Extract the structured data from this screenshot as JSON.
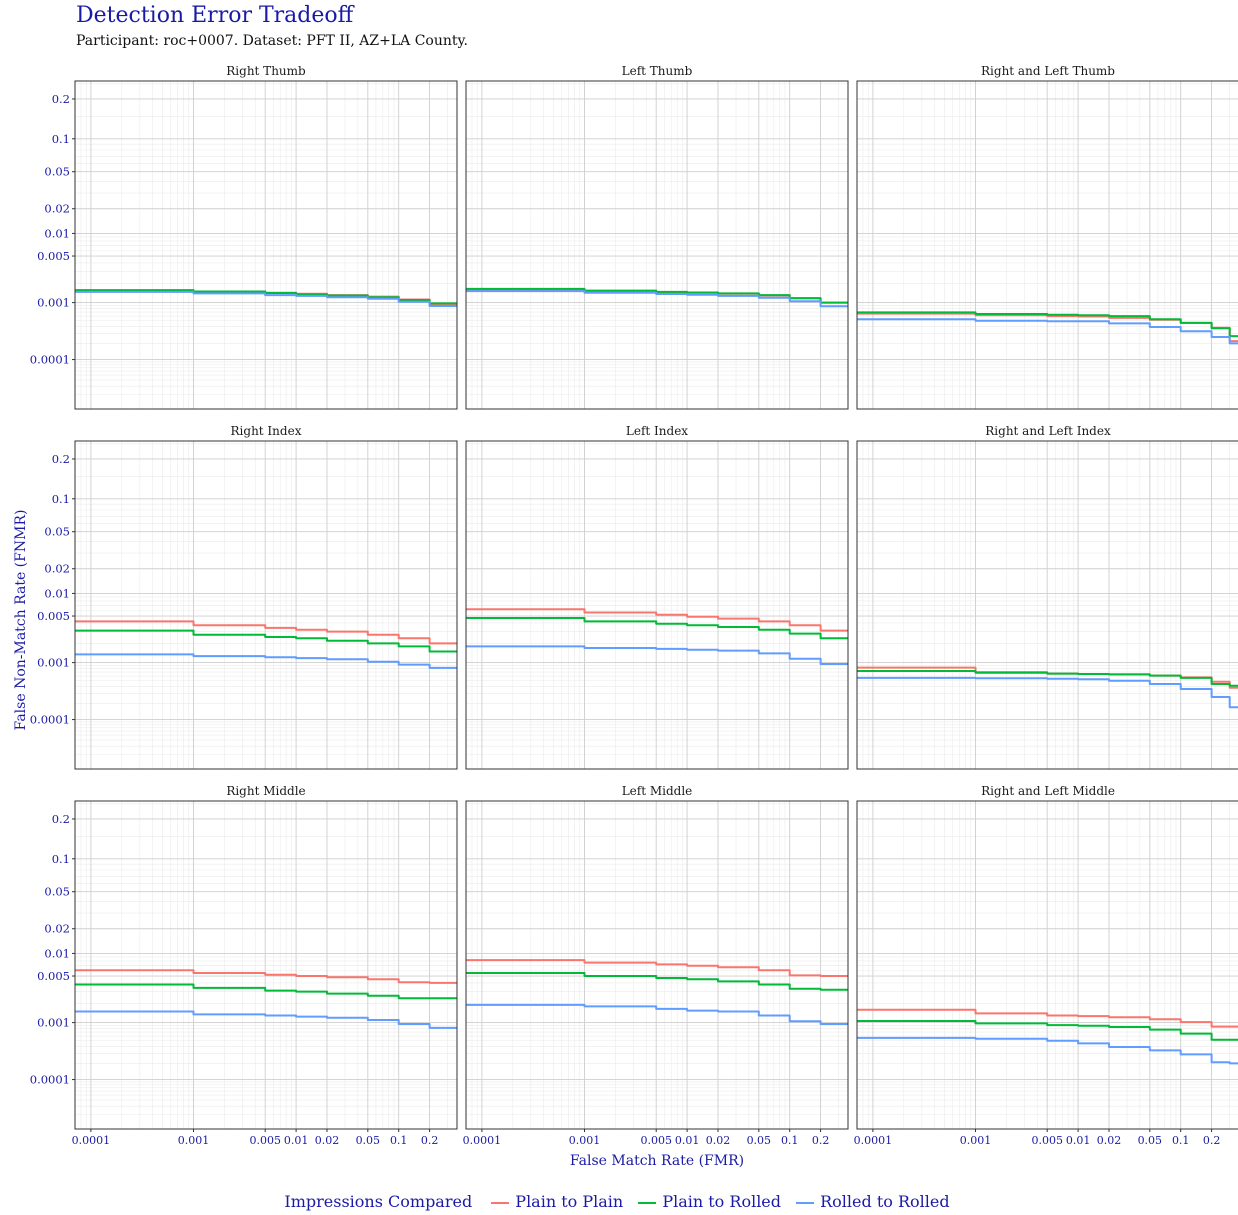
{
  "title": "Detection Error Tradeoff",
  "subtitle": "Participant: roc+0007. Dataset: PFT II, AZ+LA County.",
  "chart_data": {
    "type": "line",
    "xlabel": "False Match Rate (FMR)",
    "ylabel": "False Non-Match Rate (FNMR)",
    "x_scale": "log",
    "y_scale": "probit",
    "xlim": [
      7e-05,
      0.37
    ],
    "ylim": [
      1e-05,
      0.26
    ],
    "x_ticks": [
      {
        "v": 0.0001,
        "label": "0.0001"
      },
      {
        "v": 0.001,
        "label": "0.001"
      },
      {
        "v": 0.005,
        "label": "0.005"
      },
      {
        "v": 0.01,
        "label": "0.01"
      },
      {
        "v": 0.02,
        "label": "0.02"
      },
      {
        "v": 0.05,
        "label": "0.05"
      },
      {
        "v": 0.1,
        "label": "0.1"
      },
      {
        "v": 0.2,
        "label": "0.2"
      }
    ],
    "y_ticks": [
      {
        "v": 0.2,
        "label": "0.2"
      },
      {
        "v": 0.1,
        "label": "0.1"
      },
      {
        "v": 0.05,
        "label": "0.05"
      },
      {
        "v": 0.02,
        "label": "0.02"
      },
      {
        "v": 0.01,
        "label": "0.01"
      },
      {
        "v": 0.005,
        "label": "0.005"
      },
      {
        "v": 0.001,
        "label": "0.001"
      },
      {
        "v": 0.0001,
        "label": "0.0001"
      }
    ],
    "grid": true,
    "legend": {
      "title": "Impressions Compared",
      "position": "bottom",
      "items": [
        {
          "name": "Plain to Plain",
          "color": "#F8766D"
        },
        {
          "name": "Plain to Rolled",
          "color": "#00BA38"
        },
        {
          "name": "Rolled to Rolled",
          "color": "#619CFF"
        }
      ]
    },
    "panels": [
      {
        "title": "Right Thumb",
        "series": [
          {
            "name": "Plain to Plain",
            "x": [
              7e-05,
              0.001,
              0.005,
              0.01,
              0.02,
              0.05,
              0.1,
              0.2,
              0.37
            ],
            "y": [
              0.00155,
              0.0015,
              0.00143,
              0.00138,
              0.00132,
              0.00125,
              0.00112,
              0.00095,
              0.00095
            ]
          },
          {
            "name": "Plain to Rolled",
            "x": [
              7e-05,
              0.001,
              0.005,
              0.01,
              0.02,
              0.05,
              0.1,
              0.2,
              0.37
            ],
            "y": [
              0.00158,
              0.0015,
              0.00142,
              0.00135,
              0.0013,
              0.00122,
              0.0011,
              0.00097,
              0.00097
            ]
          },
          {
            "name": "Rolled to Rolled",
            "x": [
              7e-05,
              0.001,
              0.005,
              0.01,
              0.02,
              0.05,
              0.1,
              0.2,
              0.37
            ],
            "y": [
              0.00148,
              0.0014,
              0.00132,
              0.00128,
              0.00122,
              0.00115,
              0.00103,
              0.00088,
              0.00088
            ]
          }
        ]
      },
      {
        "title": "Left Thumb",
        "series": [
          {
            "name": "Plain to Plain",
            "x": [
              7e-05,
              0.001,
              0.005,
              0.01,
              0.02,
              0.05,
              0.1,
              0.2,
              0.37
            ],
            "y": [
              0.0016,
              0.00152,
              0.00147,
              0.00143,
              0.00138,
              0.0013,
              0.00117,
              0.001,
              0.001
            ]
          },
          {
            "name": "Plain to Rolled",
            "x": [
              7e-05,
              0.001,
              0.005,
              0.01,
              0.02,
              0.05,
              0.1,
              0.2,
              0.37
            ],
            "y": [
              0.00165,
              0.00155,
              0.00148,
              0.00145,
              0.0014,
              0.00132,
              0.00118,
              0.001,
              0.001
            ]
          },
          {
            "name": "Rolled to Rolled",
            "x": [
              7e-05,
              0.001,
              0.005,
              0.01,
              0.02,
              0.05,
              0.1,
              0.2,
              0.37
            ],
            "y": [
              0.00152,
              0.00143,
              0.00137,
              0.00133,
              0.00128,
              0.0012,
              0.00105,
              0.00087,
              0.00087
            ]
          }
        ]
      },
      {
        "title": "Right and Left Thumb",
        "series": [
          {
            "name": "Plain to Plain",
            "x": [
              7e-05,
              0.001,
              0.005,
              0.01,
              0.02,
              0.05,
              0.1,
              0.2,
              0.3,
              0.37
            ],
            "y": [
              0.00066,
              0.00062,
              0.0006,
              0.00059,
              0.00056,
              0.00052,
              0.00046,
              0.00038,
              0.00022,
              0.00022
            ]
          },
          {
            "name": "Plain to Rolled",
            "x": [
              7e-05,
              0.001,
              0.005,
              0.01,
              0.02,
              0.05,
              0.1,
              0.2,
              0.3,
              0.37
            ],
            "y": [
              0.00069,
              0.00065,
              0.00063,
              0.00062,
              0.0006,
              0.00053,
              0.00046,
              0.00037,
              0.00027,
              0.00027
            ]
          },
          {
            "name": "Rolled to Rolled",
            "x": [
              7e-05,
              0.001,
              0.005,
              0.01,
              0.02,
              0.05,
              0.1,
              0.2,
              0.3,
              0.37
            ],
            "y": [
              0.00053,
              0.0005,
              0.00049,
              0.00049,
              0.00045,
              0.00039,
              0.00033,
              0.00026,
              0.0002,
              0.0002
            ]
          }
        ]
      },
      {
        "title": "Right Index",
        "series": [
          {
            "name": "Plain to Plain",
            "x": [
              7e-05,
              0.001,
              0.005,
              0.01,
              0.02,
              0.05,
              0.1,
              0.2,
              0.37
            ],
            "y": [
              0.0042,
              0.0037,
              0.0034,
              0.0032,
              0.003,
              0.0027,
              0.0024,
              0.002,
              0.002
            ]
          },
          {
            "name": "Plain to Rolled",
            "x": [
              7e-05,
              0.001,
              0.005,
              0.01,
              0.02,
              0.05,
              0.1,
              0.2,
              0.37
            ],
            "y": [
              0.0031,
              0.0027,
              0.0025,
              0.0024,
              0.0022,
              0.002,
              0.0018,
              0.0015,
              0.0015
            ]
          },
          {
            "name": "Rolled to Rolled",
            "x": [
              7e-05,
              0.001,
              0.005,
              0.01,
              0.02,
              0.05,
              0.1,
              0.2,
              0.37
            ],
            "y": [
              0.00135,
              0.00127,
              0.00122,
              0.00118,
              0.00113,
              0.00103,
              0.00093,
              0.00082,
              0.00082
            ]
          }
        ]
      },
      {
        "title": "Left Index",
        "series": [
          {
            "name": "Plain to Plain",
            "x": [
              7e-05,
              0.001,
              0.005,
              0.01,
              0.02,
              0.05,
              0.1,
              0.2,
              0.37
            ],
            "y": [
              0.0062,
              0.0056,
              0.0052,
              0.0049,
              0.0046,
              0.0042,
              0.0037,
              0.0031,
              0.0031
            ]
          },
          {
            "name": "Plain to Rolled",
            "x": [
              7e-05,
              0.001,
              0.005,
              0.01,
              0.02,
              0.05,
              0.1,
              0.2,
              0.37
            ],
            "y": [
              0.0047,
              0.0042,
              0.0039,
              0.0037,
              0.0035,
              0.0032,
              0.0028,
              0.0024,
              0.0024
            ]
          },
          {
            "name": "Rolled to Rolled",
            "x": [
              7e-05,
              0.001,
              0.005,
              0.01,
              0.02,
              0.05,
              0.1,
              0.2,
              0.37
            ],
            "y": [
              0.0018,
              0.0017,
              0.00165,
              0.0016,
              0.00155,
              0.0014,
              0.00115,
              0.00095,
              0.00095
            ]
          }
        ]
      },
      {
        "title": "Right and Left Index",
        "series": [
          {
            "name": "Plain to Plain",
            "x": [
              7e-05,
              0.001,
              0.005,
              0.01,
              0.02,
              0.05,
              0.1,
              0.2,
              0.3,
              0.37
            ],
            "y": [
              0.00083,
              0.0007,
              0.00066,
              0.00065,
              0.00064,
              0.00061,
              0.00057,
              0.00048,
              0.00038,
              0.00038
            ]
          },
          {
            "name": "Plain to Rolled",
            "x": [
              7e-05,
              0.001,
              0.005,
              0.01,
              0.02,
              0.05,
              0.1,
              0.2,
              0.3,
              0.37
            ],
            "y": [
              0.00073,
              0.00068,
              0.00066,
              0.00065,
              0.00064,
              0.00061,
              0.00056,
              0.00044,
              0.00041,
              0.00041
            ]
          },
          {
            "name": "Rolled to Rolled",
            "x": [
              7e-05,
              0.001,
              0.005,
              0.01,
              0.02,
              0.05,
              0.1,
              0.2,
              0.3,
              0.37
            ],
            "y": [
              0.00056,
              0.00055,
              0.00054,
              0.00053,
              0.0005,
              0.00044,
              0.00036,
              0.00026,
              0.00017,
              0.00017
            ]
          }
        ]
      },
      {
        "title": "Right Middle",
        "series": [
          {
            "name": "Plain to Plain",
            "x": [
              7e-05,
              0.001,
              0.005,
              0.01,
              0.02,
              0.05,
              0.1,
              0.2,
              0.37
            ],
            "y": [
              0.006,
              0.0055,
              0.0052,
              0.005,
              0.0048,
              0.0045,
              0.0041,
              0.004,
              0.004
            ]
          },
          {
            "name": "Plain to Rolled",
            "x": [
              7e-05,
              0.001,
              0.005,
              0.01,
              0.02,
              0.05,
              0.1,
              0.2,
              0.37
            ],
            "y": [
              0.0038,
              0.0034,
              0.0031,
              0.003,
              0.0028,
              0.0026,
              0.0024,
              0.0024,
              0.0024
            ]
          },
          {
            "name": "Rolled to Rolled",
            "x": [
              7e-05,
              0.001,
              0.005,
              0.01,
              0.02,
              0.05,
              0.1,
              0.2,
              0.37
            ],
            "y": [
              0.0015,
              0.00135,
              0.0013,
              0.00125,
              0.0012,
              0.0011,
              0.00095,
              0.00082,
              0.00082
            ]
          }
        ]
      },
      {
        "title": "Left Middle",
        "series": [
          {
            "name": "Plain to Plain",
            "x": [
              7e-05,
              0.001,
              0.005,
              0.01,
              0.02,
              0.05,
              0.1,
              0.2,
              0.37
            ],
            "y": [
              0.0082,
              0.0076,
              0.0072,
              0.0069,
              0.0066,
              0.006,
              0.0051,
              0.005,
              0.005
            ]
          },
          {
            "name": "Plain to Rolled",
            "x": [
              7e-05,
              0.001,
              0.005,
              0.01,
              0.02,
              0.05,
              0.1,
              0.2,
              0.37
            ],
            "y": [
              0.0055,
              0.005,
              0.0047,
              0.0045,
              0.0042,
              0.0038,
              0.0033,
              0.0032,
              0.0032
            ]
          },
          {
            "name": "Rolled to Rolled",
            "x": [
              7e-05,
              0.001,
              0.005,
              0.01,
              0.02,
              0.05,
              0.1,
              0.2,
              0.37
            ],
            "y": [
              0.0019,
              0.0018,
              0.00165,
              0.00155,
              0.0015,
              0.0013,
              0.00105,
              0.00095,
              0.00095
            ]
          }
        ]
      },
      {
        "title": "Right and Left Middle",
        "series": [
          {
            "name": "Plain to Plain",
            "x": [
              7e-05,
              0.001,
              0.005,
              0.01,
              0.02,
              0.05,
              0.1,
              0.2,
              0.3,
              0.37
            ],
            "y": [
              0.0016,
              0.0014,
              0.0013,
              0.00127,
              0.00122,
              0.00113,
              0.00102,
              0.00086,
              0.00086,
              0.00086
            ]
          },
          {
            "name": "Plain to Rolled",
            "x": [
              7e-05,
              0.001,
              0.005,
              0.01,
              0.02,
              0.05,
              0.1,
              0.2,
              0.3,
              0.37
            ],
            "y": [
              0.00106,
              0.00097,
              0.00091,
              0.00089,
              0.00085,
              0.00077,
              0.00066,
              0.00052,
              0.00052,
              0.00052
            ]
          },
          {
            "name": "Rolled to Rolled",
            "x": [
              7e-05,
              0.001,
              0.005,
              0.01,
              0.02,
              0.05,
              0.1,
              0.2,
              0.3,
              0.37
            ],
            "y": [
              0.00056,
              0.00054,
              0.0005,
              0.00045,
              0.00039,
              0.00034,
              0.00029,
              0.00021,
              0.0002,
              0.0002
            ]
          }
        ]
      }
    ]
  }
}
